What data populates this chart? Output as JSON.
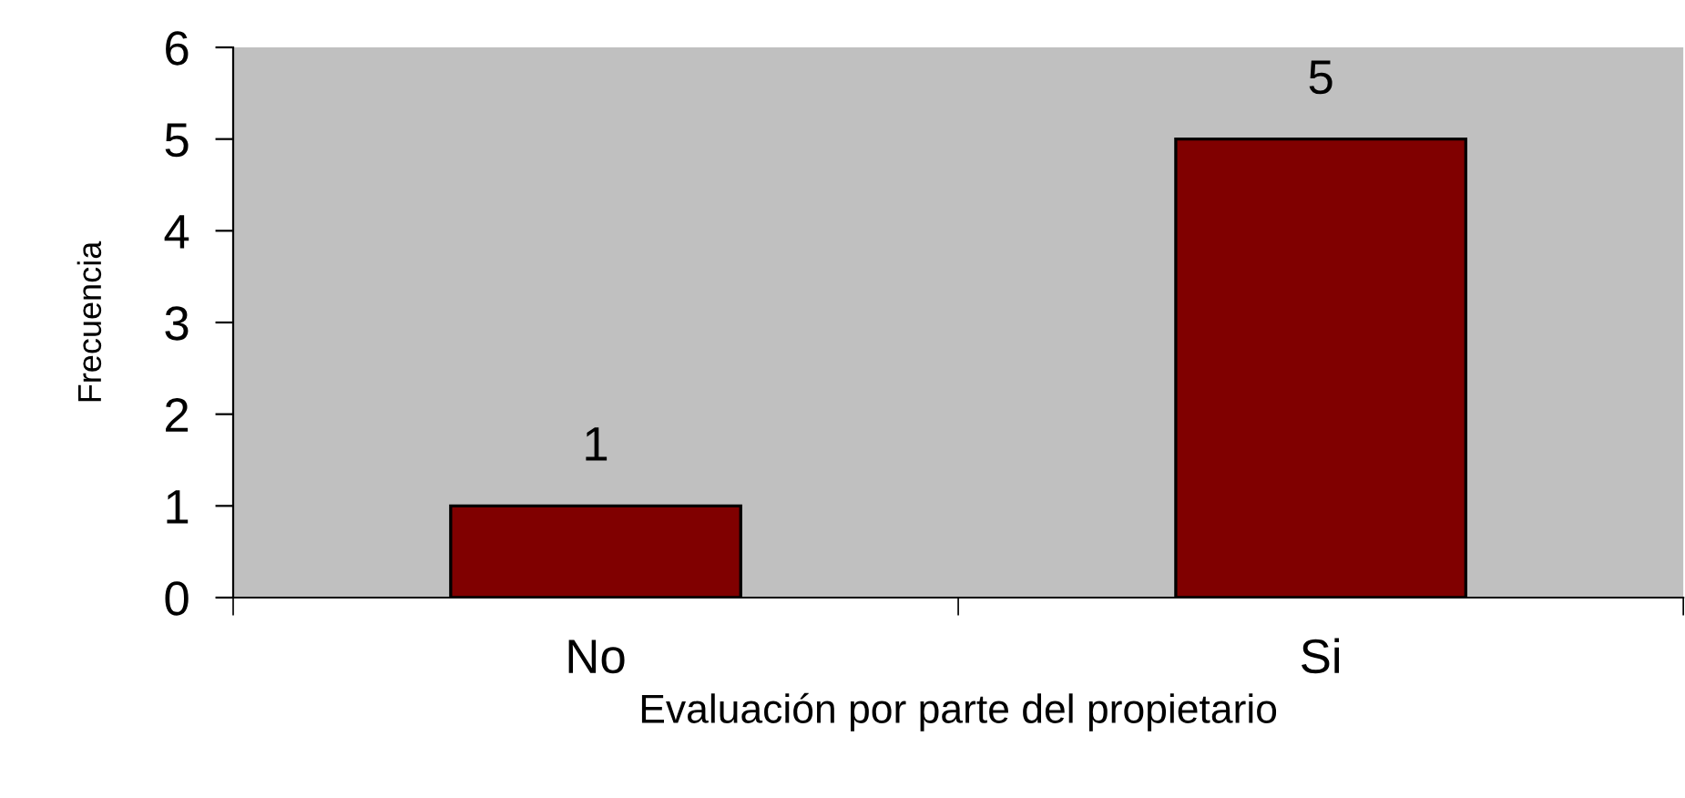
{
  "chart_data": {
    "type": "bar",
    "xlabel": "Evaluación por parte del propietario",
    "ylabel": "Frecuencia",
    "categories": [
      "No",
      "Si"
    ],
    "values": [
      1,
      5
    ],
    "color": "#800000",
    "ylim": [
      0,
      6
    ],
    "yticks": [
      0,
      1,
      2,
      3,
      4,
      5,
      6
    ],
    "data_labels": true,
    "grid": false,
    "legend": false
  }
}
